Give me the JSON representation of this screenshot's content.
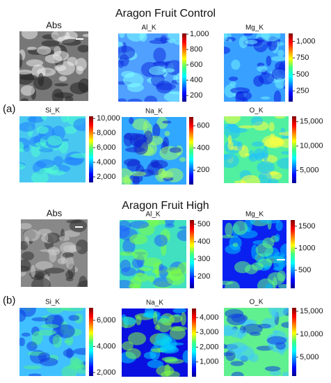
{
  "figure": {
    "sections": [
      {
        "title": "Aragon Fruit Control",
        "label": "(a)",
        "panels": [
          {
            "name": "Abs"
          },
          {
            "name": "Al_K",
            "colorbar": {
              "lim": [
                120,
                1010
              ],
              "ticks": [
                {
                  "value": 1000,
                  "label": "1,000"
                },
                800,
                600,
                400,
                200
              ]
            }
          },
          {
            "name": "Mg_K",
            "colorbar": {
              "lim": [
                90,
                1120
              ],
              "ticks": [
                {
                  "value": 1000,
                  "label": "1,000"
                },
                750,
                500,
                250
              ]
            }
          },
          {
            "name": "Si_K",
            "colorbar": {
              "lim": [
                1240,
                10300
              ],
              "ticks": [
                {
                  "value": 10000,
                  "label": "10,000"
                },
                {
                  "value": 8000,
                  "label": "8,000"
                },
                {
                  "value": 6000,
                  "label": "6,000"
                },
                {
                  "value": 4000,
                  "label": "4,000"
                },
                {
                  "value": 2000,
                  "label": "2,000"
                }
              ]
            }
          },
          {
            "name": "Na_K",
            "colorbar": {
              "lim": [
                70,
                680
              ],
              "ticks": [
                600,
                400,
                200
              ]
            }
          },
          {
            "name": "O_K",
            "colorbar": {
              "lim": [
                2400,
                16100
              ],
              "ticks": [
                {
                  "value": 15000,
                  "label": "15,000"
                },
                {
                  "value": 10000,
                  "label": "10,000"
                },
                {
                  "value": 5000,
                  "label": "5,000"
                }
              ]
            }
          }
        ]
      },
      {
        "title": "Aragon Fruit High",
        "label": "(b)",
        "panels": [
          {
            "name": "Abs"
          },
          {
            "name": "Al_K",
            "colorbar": {
              "lim": [
                132,
                524
              ],
              "ticks": [
                500,
                400,
                300,
                200
              ]
            }
          },
          {
            "name": "Mg_K",
            "colorbar": {
              "lim": [
                90,
                1640
              ],
              "ticks": [
                1500,
                1000,
                500
              ]
            }
          },
          {
            "name": "Si_K",
            "colorbar": {
              "lim": [
                1730,
                6960
              ],
              "ticks": [
                {
                  "value": 6000,
                  "label": "6,000"
                },
                {
                  "value": 4000,
                  "label": "4,000"
                },
                {
                  "value": 2000,
                  "label": "2,000"
                }
              ]
            }
          },
          {
            "name": "Na_K",
            "colorbar": {
              "lim": [
                0,
                4610
              ],
              "ticks": [
                {
                  "value": 4000,
                  "label": "4,000"
                },
                {
                  "value": 3000,
                  "label": "3,000"
                },
                {
                  "value": 2000,
                  "label": "2,000"
                },
                {
                  "value": 1000,
                  "label": "1,000"
                }
              ]
            }
          },
          {
            "name": "O_K",
            "colorbar": {
              "lim": [
                900,
                15760
              ],
              "ticks": [
                {
                  "value": 15000,
                  "label": "15,000"
                },
                {
                  "value": 10000,
                  "label": "10,000"
                },
                {
                  "value": 5000,
                  "label": "5,000"
                }
              ]
            }
          }
        ]
      }
    ]
  }
}
